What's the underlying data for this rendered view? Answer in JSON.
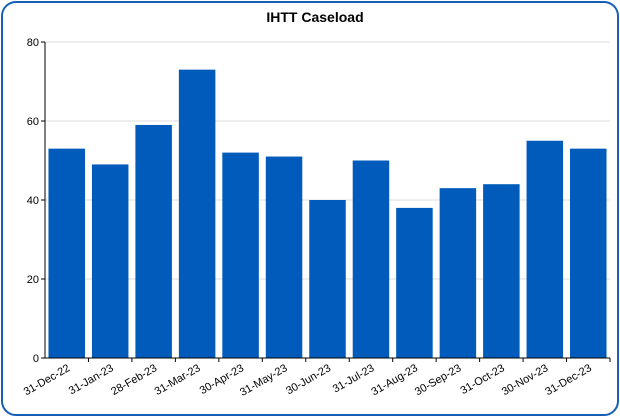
{
  "chart_data": {
    "type": "bar",
    "title": "IHTT Caseload",
    "categories": [
      "31-Dec-22",
      "31-Jan-23",
      "28-Feb-23",
      "31-Mar-23",
      "30-Apr-23",
      "31-May-23",
      "30-Jun-23",
      "31-Jul-23",
      "31-Aug-23",
      "30-Sep-23",
      "31-Oct-23",
      "30-Nov-23",
      "31-Dec-23"
    ],
    "values": [
      53,
      49,
      59,
      73,
      52,
      51,
      40,
      50,
      38,
      43,
      44,
      55,
      53
    ],
    "color": "#005bbb",
    "ylim": [
      0,
      80
    ],
    "yticks": [
      0,
      20,
      40,
      60,
      80
    ],
    "grid": true
  }
}
